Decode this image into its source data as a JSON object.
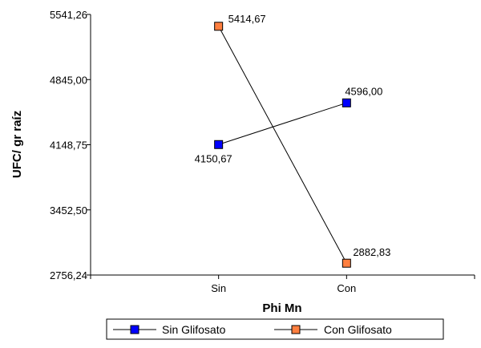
{
  "chart_data": {
    "type": "line",
    "xlabel": "Phi Mn",
    "ylabel": "UFC/ gr raíz",
    "categories": [
      "Sin",
      "Con"
    ],
    "y_ticks": [
      "5541,26",
      "4845,00",
      "4148,75",
      "3452,50",
      "2756,24"
    ],
    "ylim": [
      2756.24,
      5541.26
    ],
    "grid": false,
    "legend_position": "bottom",
    "series": [
      {
        "name": "Sin Glifosato",
        "color": "#0000ff",
        "values": [
          4150.67,
          4596.0
        ],
        "labels": [
          "4150,67",
          "4596,00"
        ]
      },
      {
        "name": "Con Glifosato",
        "color": "#ff7f3f",
        "values": [
          5414.67,
          2882.83
        ],
        "labels": [
          "5414,67",
          "2882,83"
        ]
      }
    ]
  }
}
